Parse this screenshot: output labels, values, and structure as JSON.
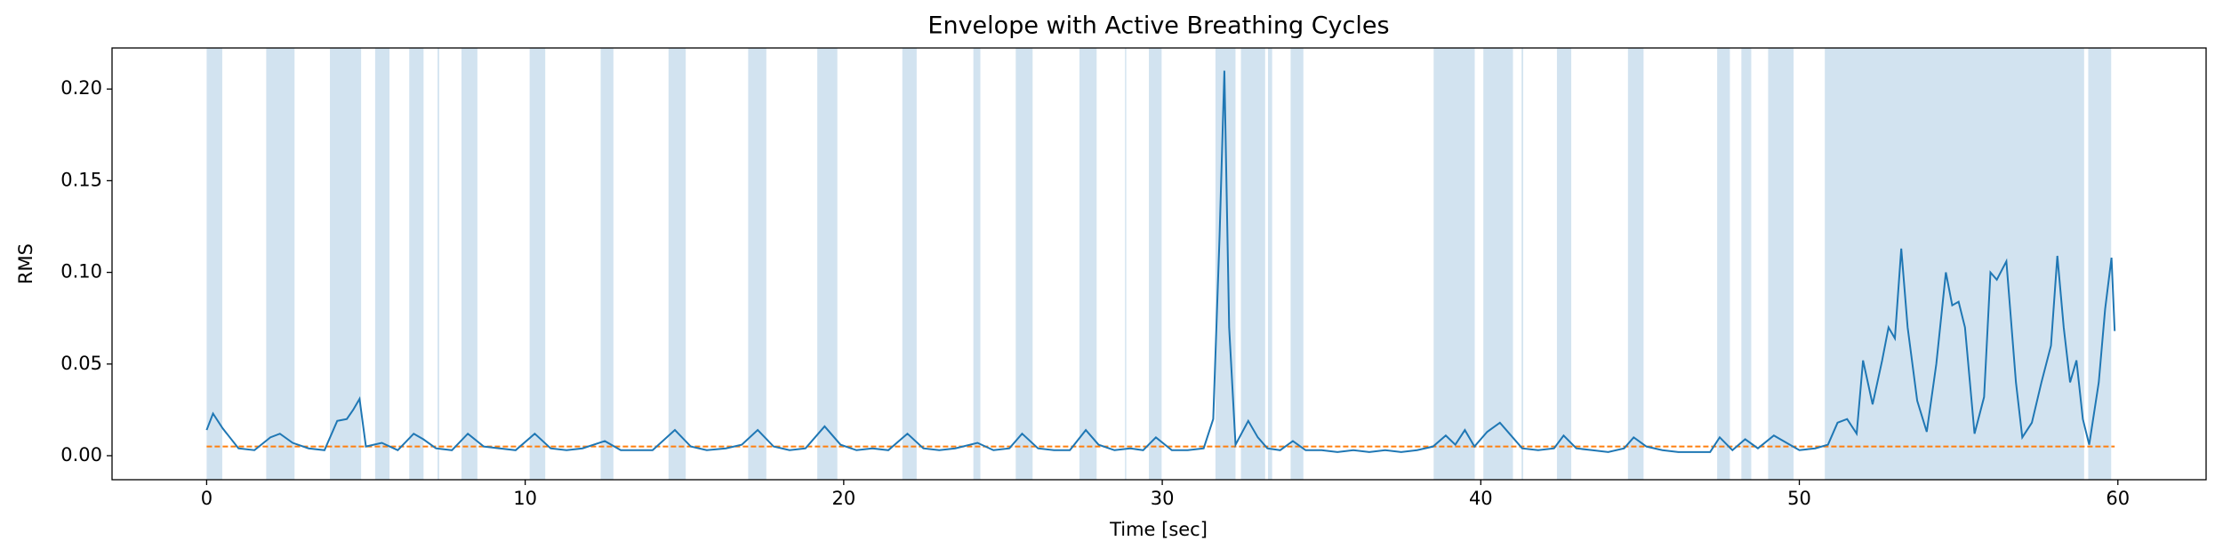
{
  "chart_data": {
    "type": "line",
    "title": "Envelope with Active Breathing Cycles",
    "xlabel": "Time [sec]",
    "ylabel": "RMS",
    "xlim": [
      -2.97,
      62.77
    ],
    "ylim": [
      -0.0131,
      0.2224
    ],
    "xticks": [
      0,
      10,
      20,
      30,
      40,
      50,
      60
    ],
    "yticks": [
      {
        "value": 0,
        "label": "0.00"
      },
      {
        "value": 0.05,
        "label": "0.05"
      },
      {
        "value": 0.1,
        "label": "0.10"
      },
      {
        "value": 0.15,
        "label": "0.15"
      },
      {
        "value": 0.2,
        "label": "0.20"
      }
    ],
    "span_color": "#d2e3f0",
    "spans": [
      [
        0,
        0.49
      ],
      [
        1.87,
        2.76
      ],
      [
        3.87,
        4.85
      ],
      [
        5.29,
        5.74
      ],
      [
        6.36,
        6.81
      ],
      [
        7.25,
        7.3
      ],
      [
        8.0,
        8.5
      ],
      [
        10.14,
        10.63
      ],
      [
        12.37,
        12.77
      ],
      [
        14.5,
        15.04
      ],
      [
        17.0,
        17.57
      ],
      [
        19.17,
        19.8
      ],
      [
        21.84,
        22.29
      ],
      [
        24.07,
        24.29
      ],
      [
        25.4,
        25.93
      ],
      [
        27.4,
        27.94
      ],
      [
        28.83,
        28.87
      ],
      [
        29.58,
        29.98
      ],
      [
        31.67,
        32.3
      ],
      [
        32.47,
        33.23
      ],
      [
        33.32,
        33.45
      ],
      [
        34.03,
        34.43
      ],
      [
        38.52,
        39.81
      ],
      [
        40.08,
        41.01
      ],
      [
        41.28,
        41.33
      ],
      [
        42.39,
        42.84
      ],
      [
        44.62,
        45.11
      ],
      [
        47.42,
        47.82
      ],
      [
        48.18,
        48.49
      ],
      [
        49.02,
        49.82
      ],
      [
        50.8,
        58.94
      ],
      [
        59.07,
        59.79
      ]
    ],
    "threshold": 0.005,
    "threshold_color": "#ff7f0e",
    "series": [
      {
        "color": "#1f77b4",
        "x": [
          0,
          0.2,
          0.5,
          1.0,
          1.5,
          2.0,
          2.3,
          2.7,
          3.2,
          3.7,
          4.1,
          4.4,
          4.6,
          4.8,
          5.0,
          5.5,
          6.0,
          6.5,
          6.8,
          7.2,
          7.7,
          8.2,
          8.7,
          9.2,
          9.7,
          10.3,
          10.8,
          11.3,
          11.8,
          12.5,
          13.0,
          13.5,
          14.0,
          14.7,
          15.2,
          15.7,
          16.3,
          16.8,
          17.3,
          17.8,
          18.3,
          18.8,
          19.4,
          19.9,
          20.4,
          20.9,
          21.4,
          22.0,
          22.5,
          23.0,
          23.5,
          24.2,
          24.7,
          25.2,
          25.6,
          26.1,
          26.6,
          27.1,
          27.6,
          28.0,
          28.5,
          29.0,
          29.4,
          29.8,
          30.3,
          30.8,
          31.3,
          31.6,
          31.8,
          31.95,
          32.1,
          32.3,
          32.7,
          33.0,
          33.3,
          33.7,
          34.1,
          34.5,
          35.0,
          35.5,
          36.0,
          36.5,
          37.0,
          37.5,
          38.0,
          38.5,
          38.9,
          39.2,
          39.5,
          39.8,
          40.2,
          40.6,
          40.9,
          41.3,
          41.8,
          42.3,
          42.6,
          43.0,
          43.5,
          44.0,
          44.5,
          44.8,
          45.2,
          45.7,
          46.2,
          46.7,
          47.2,
          47.5,
          47.9,
          48.3,
          48.7,
          49.2,
          49.6,
          50.0,
          50.5,
          50.9,
          51.2,
          51.5,
          51.8,
          52.0,
          52.3,
          52.6,
          52.8,
          53.0,
          53.2,
          53.4,
          53.7,
          54.0,
          54.3,
          54.6,
          54.8,
          55.0,
          55.2,
          55.5,
          55.8,
          56.0,
          56.2,
          56.5,
          56.8,
          57.0,
          57.3,
          57.6,
          57.9,
          58.1,
          58.3,
          58.5,
          58.7,
          58.9,
          59.1,
          59.4,
          59.6,
          59.8,
          59.9
        ],
        "values": [
          0.014,
          0.023,
          0.015,
          0.004,
          0.003,
          0.01,
          0.012,
          0.007,
          0.004,
          0.003,
          0.019,
          0.02,
          0.025,
          0.031,
          0.005,
          0.007,
          0.003,
          0.012,
          0.009,
          0.004,
          0.003,
          0.012,
          0.005,
          0.004,
          0.003,
          0.012,
          0.004,
          0.003,
          0.004,
          0.008,
          0.003,
          0.003,
          0.003,
          0.014,
          0.005,
          0.003,
          0.004,
          0.006,
          0.014,
          0.005,
          0.003,
          0.004,
          0.016,
          0.006,
          0.003,
          0.004,
          0.003,
          0.012,
          0.004,
          0.003,
          0.004,
          0.007,
          0.003,
          0.004,
          0.012,
          0.004,
          0.003,
          0.003,
          0.014,
          0.006,
          0.003,
          0.004,
          0.003,
          0.01,
          0.003,
          0.003,
          0.004,
          0.02,
          0.12,
          0.21,
          0.07,
          0.006,
          0.019,
          0.01,
          0.004,
          0.003,
          0.008,
          0.003,
          0.003,
          0.002,
          0.003,
          0.002,
          0.003,
          0.002,
          0.003,
          0.005,
          0.011,
          0.006,
          0.014,
          0.005,
          0.013,
          0.018,
          0.012,
          0.004,
          0.003,
          0.004,
          0.011,
          0.004,
          0.003,
          0.002,
          0.004,
          0.01,
          0.005,
          0.003,
          0.002,
          0.002,
          0.002,
          0.01,
          0.003,
          0.009,
          0.004,
          0.011,
          0.007,
          0.003,
          0.004,
          0.006,
          0.018,
          0.02,
          0.012,
          0.052,
          0.028,
          0.052,
          0.07,
          0.064,
          0.113,
          0.07,
          0.03,
          0.013,
          0.05,
          0.1,
          0.082,
          0.084,
          0.07,
          0.012,
          0.032,
          0.1,
          0.096,
          0.106,
          0.04,
          0.01,
          0.018,
          0.04,
          0.06,
          0.109,
          0.07,
          0.04,
          0.052,
          0.02,
          0.006,
          0.04,
          0.08,
          0.108,
          0.068
        ]
      }
    ]
  }
}
